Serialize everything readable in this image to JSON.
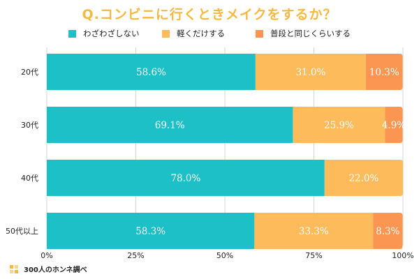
{
  "chart_data": {
    "type": "bar",
    "orientation": "horizontal",
    "stacked": true,
    "title": "Q.コンビニに行くときメイクをするか？",
    "categories": [
      "20代",
      "30代",
      "40代",
      "50代以上"
    ],
    "series": [
      {
        "name": "わざわざしない",
        "color": "#1ec0c7",
        "values": [
          58.6,
          69.1,
          78.0,
          58.3
        ],
        "labels": [
          "58.6%",
          "69.1%",
          "78.0%",
          "58.3%"
        ]
      },
      {
        "name": "軽くだけする",
        "color": "#fdbb5b",
        "values": [
          31.0,
          25.9,
          22.0,
          33.3
        ],
        "labels": [
          "31.0%",
          "25.9%",
          "22.0%",
          "33.3%"
        ]
      },
      {
        "name": "普段と同じくらいする",
        "color": "#fb9652",
        "values": [
          10.3,
          4.9,
          0,
          8.3
        ],
        "labels": [
          "10.3%",
          "4.9%",
          "",
          "8.3%"
        ]
      }
    ],
    "xlim": [
      0,
      100
    ],
    "xticks": [
      0,
      25,
      50,
      75,
      100
    ],
    "xtick_labels": [
      "0%",
      "25%",
      "50%",
      "75%",
      "100%"
    ],
    "grid": true,
    "legend": "top"
  },
  "source": "300人のホンネ調べ"
}
